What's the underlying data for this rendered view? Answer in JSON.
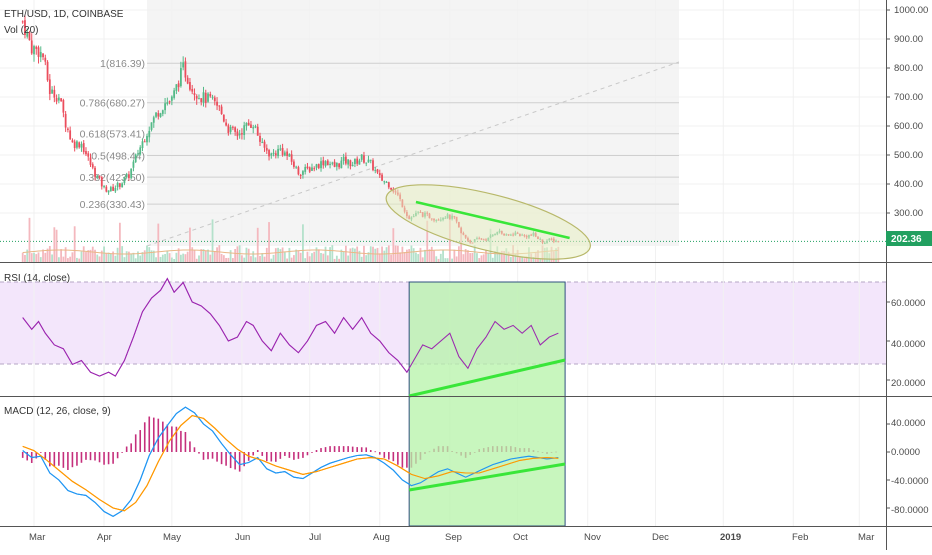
{
  "header": {
    "symbol_line": "ETH/USD, 1D, COINBASE",
    "volume_label": "Vol (20)"
  },
  "price_pane": {
    "current_price_label": "202.36",
    "current_price": 202.36,
    "y_ticks": [
      "1000.00",
      "900.00",
      "800.00",
      "700.00",
      "600.00",
      "500.00",
      "400.00",
      "300.00"
    ],
    "fib_levels": [
      {
        "label": "1(816.39)",
        "value": 816.39
      },
      {
        "label": "0.786(680.27)",
        "value": 680.27
      },
      {
        "label": "0.618(573.41)",
        "value": 573.41
      },
      {
        "label": "0.5(498.44)",
        "value": 498.44
      },
      {
        "label": "0.382(423.50)",
        "value": 423.5
      },
      {
        "label": "0.236(330.43)",
        "value": 330.43
      }
    ]
  },
  "rsi_pane": {
    "label": "RSI (14, close)",
    "y_ticks": [
      "60.0000",
      "40.0000",
      "20.0000"
    ]
  },
  "macd_pane": {
    "label": "MACD (12, 26, close, 9)",
    "y_ticks": [
      "40.0000",
      "0.0000",
      "-40.0000",
      "-80.0000"
    ]
  },
  "time_axis": {
    "labels": [
      "Mar",
      "Apr",
      "May",
      "Jun",
      "Jul",
      "Aug",
      "Sep",
      "Oct",
      "Nov",
      "Dec",
      "2019",
      "Feb",
      "Mar"
    ]
  },
  "colors": {
    "up": "#53b987",
    "down": "#eb4d5c",
    "rsi_line": "#9c27b0",
    "rsi_band": "#f3e6fb",
    "macd_line": "#2196f3",
    "signal_line": "#ff9800",
    "highlight_fill": "#b6f3a8",
    "annotation_green": "#39e639",
    "ellipse_fill": "#e8efc2",
    "ellipse_stroke": "#b8b86a"
  },
  "chart_data": [
    {
      "type": "candlestick",
      "title": "ETH/USD, 1D, COINBASE",
      "ylim": [
        180,
        1020
      ],
      "x_ticks": [
        "Mar",
        "Apr",
        "May",
        "Jun",
        "Jul",
        "Aug",
        "Sep",
        "Oct",
        "Nov",
        "Dec",
        "2019",
        "Feb",
        "Mar"
      ],
      "close_anchors": [
        [
          "Feb 24",
          960
        ],
        [
          "Feb 28",
          870
        ],
        [
          "Mar 3",
          860
        ],
        [
          "Mar 5",
          840
        ],
        [
          "Mar 8",
          720
        ],
        [
          "Mar 12",
          700
        ],
        [
          "Mar 15",
          610
        ],
        [
          "Mar 18",
          540
        ],
        [
          "Mar 22",
          540
        ],
        [
          "Mar 27",
          450
        ],
        [
          "Apr 1",
          385
        ],
        [
          "Apr 4",
          380
        ],
        [
          "Apr 8",
          400
        ],
        [
          "Apr 12",
          430
        ],
        [
          "Apr 16",
          510
        ],
        [
          "Apr 20",
          580
        ],
        [
          "Apr 24",
          640
        ],
        [
          "Apr 28",
          680
        ],
        [
          "May 1",
          690
        ],
        [
          "May 6",
          800
        ],
        [
          "May 10",
          730
        ],
        [
          "May 14",
          700
        ],
        [
          "May 18",
          690
        ],
        [
          "May 22",
          660
        ],
        [
          "May 26",
          590
        ],
        [
          "May 30",
          570
        ],
        [
          "Jun 3",
          600
        ],
        [
          "Jun 6",
          610
        ],
        [
          "Jun 10",
          530
        ],
        [
          "Jun 14",
          500
        ],
        [
          "Jun 18",
          520
        ],
        [
          "Jun 22",
          490
        ],
        [
          "Jun 26",
          440
        ],
        [
          "Jun 30",
          450
        ],
        [
          "Jul 3",
          460
        ],
        [
          "Jul 8",
          480
        ],
        [
          "Jul 12",
          460
        ],
        [
          "Jul 16",
          480
        ],
        [
          "Jul 20",
          470
        ],
        [
          "Jul 24",
          490
        ],
        [
          "Jul 28",
          470
        ],
        [
          "Aug 1",
          420
        ],
        [
          "Aug 5",
          400
        ],
        [
          "Aug 9",
          360
        ],
        [
          "Aug 14",
          280
        ],
        [
          "Aug 18",
          300
        ],
        [
          "Aug 22",
          290
        ],
        [
          "Aug 26",
          280
        ],
        [
          "Aug 30",
          290
        ],
        [
          "Sep 3",
          280
        ],
        [
          "Sep 6",
          230
        ],
        [
          "Sep 10",
          200
        ],
        [
          "Sep 14",
          210
        ],
        [
          "Sep 18",
          210
        ],
        [
          "Sep 22",
          240
        ],
        [
          "Sep 26",
          220
        ],
        [
          "Sep 30",
          230
        ],
        [
          "Oct 4",
          220
        ],
        [
          "Oct 8",
          225
        ],
        [
          "Oct 12",
          200
        ],
        [
          "Oct 16",
          208
        ],
        [
          "Oct 19",
          202.36
        ]
      ]
    },
    {
      "type": "line",
      "title": "RSI (14, close)",
      "ylim": [
        10,
        75
      ],
      "band": [
        30,
        70
      ],
      "series": [
        {
          "values": [
            [
              "Feb 24",
              52
            ],
            [
              "Feb 28",
              46
            ],
            [
              "Mar 3",
              50
            ],
            [
              "Mar 6",
              44
            ],
            [
              "Mar 10",
              38
            ],
            [
              "Mar 14",
              36
            ],
            [
              "Mar 18",
              28
            ],
            [
              "Mar 22",
              30
            ],
            [
              "Mar 26",
              24
            ],
            [
              "Mar 30",
              22
            ],
            [
              "Apr 3",
              24
            ],
            [
              "Apr 6",
              22
            ],
            [
              "Apr 10",
              30
            ],
            [
              "Apr 14",
              42
            ],
            [
              "Apr 18",
              55
            ],
            [
              "Apr 22",
              62
            ],
            [
              "Apr 26",
              66
            ],
            [
              "Apr 29",
              72
            ],
            [
              "May 2",
              65
            ],
            [
              "May 6",
              70
            ],
            [
              "May 10",
              60
            ],
            [
              "May 14",
              58
            ],
            [
              "May 18",
              54
            ],
            [
              "May 22",
              48
            ],
            [
              "May 26",
              40
            ],
            [
              "May 30",
              42
            ],
            [
              "Jun 3",
              50
            ],
            [
              "Jun 6",
              48
            ],
            [
              "Jun 10",
              40
            ],
            [
              "Jun 14",
              35
            ],
            [
              "Jun 18",
              44
            ],
            [
              "Jun 22",
              38
            ],
            [
              "Jun 26",
              34
            ],
            [
              "Jun 30",
              40
            ],
            [
              "Jul 4",
              48
            ],
            [
              "Jul 8",
              50
            ],
            [
              "Jul 12",
              44
            ],
            [
              "Jul 16",
              52
            ],
            [
              "Jul 20",
              46
            ],
            [
              "Jul 24",
              52
            ],
            [
              "Jul 28",
              44
            ],
            [
              "Aug 1",
              40
            ],
            [
              "Aug 5",
              34
            ],
            [
              "Aug 9",
              30
            ],
            [
              "Aug 13",
              24
            ],
            [
              "Aug 16",
              30
            ],
            [
              "Aug 20",
              38
            ],
            [
              "Aug 24",
              36
            ],
            [
              "Aug 28",
              40
            ],
            [
              "Sep 1",
              44
            ],
            [
              "Sep 5",
              32
            ],
            [
              "Sep 9",
              26
            ],
            [
              "Sep 13",
              36
            ],
            [
              "Sep 17",
              42
            ],
            [
              "Sep 21",
              50
            ],
            [
              "Sep 25",
              46
            ],
            [
              "Sep 29",
              48
            ],
            [
              "Oct 3",
              44
            ],
            [
              "Oct 7",
              48
            ],
            [
              "Oct 11",
              38
            ],
            [
              "Oct 15",
              42
            ],
            [
              "Oct 19",
              44
            ]
          ]
        }
      ]
    },
    {
      "type": "line",
      "title": "MACD (12, 26, close, 9)",
      "ylim": [
        -95,
        70
      ],
      "series": [
        {
          "values": [
            [
              "Feb 24",
              2
            ],
            [
              "Feb 28",
              -8
            ],
            [
              "Mar 4",
              -6
            ],
            [
              "Mar 8",
              -30
            ],
            [
              "Mar 12",
              -40
            ],
            [
              "Mar 16",
              -55
            ],
            [
              "Mar 20",
              -60
            ],
            [
              "Mar 24",
              -62
            ],
            [
              "Mar 28",
              -72
            ],
            [
              "Apr 1",
              -85
            ],
            [
              "Apr 5",
              -92
            ],
            [
              "Apr 9",
              -84
            ],
            [
              "Apr 13",
              -68
            ],
            [
              "Apr 17",
              -40
            ],
            [
              "Apr 21",
              -5
            ],
            [
              "Apr 25",
              20
            ],
            [
              "Apr 29",
              38
            ],
            [
              "May 3",
              55
            ],
            [
              "May 7",
              64
            ],
            [
              "May 11",
              56
            ],
            [
              "May 15",
              40
            ],
            [
              "May 19",
              30
            ],
            [
              "May 23",
              12
            ],
            [
              "May 27",
              -4
            ],
            [
              "May 31",
              -18
            ],
            [
              "Jun 4",
              -15
            ],
            [
              "Jun 8",
              -8
            ],
            [
              "Jun 12",
              -24
            ],
            [
              "Jun 16",
              -30
            ],
            [
              "Jun 20",
              -28
            ],
            [
              "Jun 24",
              -36
            ],
            [
              "Jun 28",
              -38
            ],
            [
              "Jul 2",
              -30
            ],
            [
              "Jul 6",
              -22
            ],
            [
              "Jul 10",
              -16
            ],
            [
              "Jul 14",
              -12
            ],
            [
              "Jul 18",
              -8
            ],
            [
              "Jul 22",
              -5
            ],
            [
              "Jul 26",
              -4
            ],
            [
              "Jul 30",
              -8
            ],
            [
              "Aug 3",
              -16
            ],
            [
              "Aug 7",
              -26
            ],
            [
              "Aug 11",
              -40
            ],
            [
              "Aug 15",
              -48
            ],
            [
              "Aug 19",
              -44
            ],
            [
              "Aug 23",
              -36
            ],
            [
              "Aug 27",
              -28
            ],
            [
              "Aug 31",
              -24
            ],
            [
              "Sep 4",
              -30
            ],
            [
              "Sep 8",
              -36
            ],
            [
              "Sep 12",
              -30
            ],
            [
              "Sep 16",
              -24
            ],
            [
              "Sep 20",
              -18
            ],
            [
              "Sep 24",
              -14
            ],
            [
              "Sep 28",
              -10
            ],
            [
              "Oct 2",
              -8
            ],
            [
              "Oct 6",
              -6
            ],
            [
              "Oct 10",
              -8
            ],
            [
              "Oct 14",
              -10
            ],
            [
              "Oct 19",
              -8
            ]
          ]
        },
        {
          "values": [
            [
              "Feb 24",
              8
            ],
            [
              "Mar 1",
              2
            ],
            [
              "Mar 6",
              -10
            ],
            [
              "Mar 12",
              -26
            ],
            [
              "Mar 18",
              -42
            ],
            [
              "Mar 24",
              -54
            ],
            [
              "Mar 30",
              -68
            ],
            [
              "Apr 5",
              -80
            ],
            [
              "Apr 10",
              -84
            ],
            [
              "Apr 15",
              -72
            ],
            [
              "Apr 20",
              -48
            ],
            [
              "Apr 25",
              -14
            ],
            [
              "Apr 30",
              16
            ],
            [
              "May 5",
              38
            ],
            [
              "May 10",
              52
            ],
            [
              "May 15",
              48
            ],
            [
              "May 20",
              34
            ],
            [
              "May 25",
              18
            ],
            [
              "May 30",
              4
            ],
            [
              "Jun 4",
              -6
            ],
            [
              "Jun 10",
              -12
            ],
            [
              "Jun 16",
              -20
            ],
            [
              "Jun 22",
              -26
            ],
            [
              "Jun 28",
              -32
            ],
            [
              "Jul 4",
              -28
            ],
            [
              "Jul 10",
              -22
            ],
            [
              "Jul 16",
              -16
            ],
            [
              "Jul 22",
              -10
            ],
            [
              "Jul 28",
              -8
            ],
            [
              "Aug 3",
              -10
            ],
            [
              "Aug 9",
              -20
            ],
            [
              "Aug 15",
              -32
            ],
            [
              "Aug 21",
              -38
            ],
            [
              "Aug 27",
              -34
            ],
            [
              "Sep 2",
              -28
            ],
            [
              "Sep 8",
              -30
            ],
            [
              "Sep 14",
              -30
            ],
            [
              "Sep 20",
              -24
            ],
            [
              "Sep 26",
              -18
            ],
            [
              "Oct 2",
              -12
            ],
            [
              "Oct 8",
              -9
            ],
            [
              "Oct 14",
              -8
            ],
            [
              "Oct 19",
              -9
            ]
          ]
        }
      ]
    }
  ]
}
